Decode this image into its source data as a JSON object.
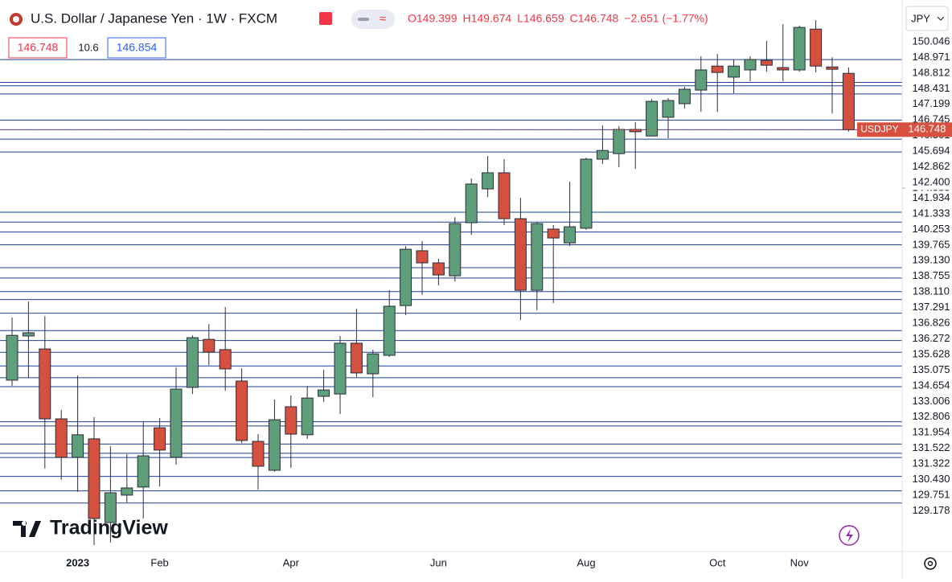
{
  "header": {
    "title": "U.S. Dollar / Japanese Yen · 1W · FXCM",
    "ohlc_labels": [
      "O149.399",
      "H149.674",
      "L146.659",
      "C146.748",
      "−2.651 (−1.77%)"
    ],
    "bid": "146.748",
    "spread": "10.6",
    "ask": "146.854",
    "currency": "JPY",
    "watermark": "TradingView"
  },
  "chart_data": {
    "type": "candlestick",
    "categories": [
      null,
      null,
      null,
      null,
      "2023",
      null,
      null,
      null,
      null,
      "Feb",
      null,
      null,
      null,
      null,
      null,
      null,
      null,
      "Apr",
      null,
      null,
      null,
      null,
      null,
      null,
      null,
      null,
      "Jun",
      null,
      null,
      null,
      null,
      null,
      null,
      null,
      null,
      "Aug",
      null,
      null,
      null,
      null,
      null,
      null,
      null,
      "Oct",
      null,
      null,
      null,
      null,
      "Nov",
      null,
      null,
      null
    ],
    "open": [
      134.96,
      137.04,
      136.43,
      133.14,
      131.33,
      132.2,
      128.26,
      129.55,
      129.93,
      132.72,
      131.33,
      134.62,
      136.88,
      136.4,
      134.92,
      132.08,
      130.72,
      133.71,
      132.39,
      134.2,
      134.31,
      136.7,
      135.26,
      136.13,
      138.47,
      141.05,
      140.48,
      139.87,
      142.37,
      143.96,
      144.72,
      142.56,
      139.19,
      142.07,
      141.42,
      142.11,
      145.36,
      145.62,
      146.76,
      146.45,
      147.33,
      147.97,
      148.61,
      149.74,
      149.22,
      149.56,
      150.01,
      149.67,
      149.56,
      151.48,
      149.7,
      149.399
    ],
    "high": [
      137.91,
      138.66,
      137.98,
      133.56,
      135.18,
      133.22,
      131.85,
      131.48,
      132.99,
      133.18,
      135.56,
      137.07,
      137.6,
      138.4,
      135.52,
      132.42,
      134.05,
      134.24,
      134.69,
      135.45,
      137.04,
      138.32,
      136.39,
      139.19,
      141.27,
      141.5,
      140.67,
      142.63,
      144.45,
      145.51,
      145.36,
      143.54,
      142.41,
      142.26,
      144.3,
      145.43,
      146.95,
      146.91,
      147.1,
      148.19,
      148.23,
      148.76,
      150.2,
      150.31,
      150.05,
      150.2,
      150.92,
      151.71,
      151.64,
      151.9,
      150.16,
      149.674
    ],
    "low": [
      134.69,
      135.07,
      130.8,
      130.27,
      129.7,
      127.2,
      127.32,
      129.21,
      128.45,
      129.96,
      130.98,
      134.31,
      135.67,
      134.46,
      132.0,
      129.81,
      130.65,
      130.83,
      132.2,
      133.94,
      133.37,
      135.11,
      134.16,
      136.05,
      138.02,
      138.97,
      139.42,
      139.61,
      141.8,
      143.58,
      142.26,
      137.79,
      138.25,
      138.59,
      141.27,
      142.03,
      145.13,
      144.98,
      144.9,
      146.45,
      146.34,
      147.74,
      147.59,
      147.59,
      148.46,
      149.03,
      149.48,
      149.03,
      149.48,
      149.44,
      147.51,
      146.659
    ],
    "close": [
      137.07,
      137.19,
      133.14,
      131.33,
      132.39,
      128.45,
      129.66,
      129.89,
      131.4,
      131.67,
      134.54,
      136.96,
      136.28,
      135.49,
      132.12,
      130.91,
      133.1,
      132.42,
      134.12,
      134.5,
      136.7,
      135.3,
      136.2,
      138.44,
      141.12,
      140.48,
      139.91,
      142.33,
      144.19,
      144.72,
      142.56,
      139.19,
      142.33,
      141.65,
      142.18,
      145.36,
      145.77,
      146.76,
      146.65,
      148.08,
      148.12,
      148.65,
      149.56,
      149.44,
      149.74,
      150.05,
      149.78,
      149.56,
      151.56,
      149.74,
      149.59,
      146.748
    ],
    "up_color": "#5f9e7b",
    "down_color": "#d5503f",
    "ylim": [
      126.9,
      152.85
    ],
    "yticks": [
      {
        "value": 144,
        "label": "144.000"
      }
    ],
    "levels": [
      {
        "value": 150.046,
        "label": "150.046"
      },
      148.971,
      148.812,
      148.431,
      147.199,
      146.745,
      146.301,
      145.694,
      142.862,
      {
        "value": 142.4,
        "label": "142.400"
      },
      141.934,
      141.333,
      140.253,
      139.765,
      {
        "value": 139.13,
        "label": "139.130"
      },
      138.755,
      {
        "value": 138.11,
        "label": "138.110"
      },
      137.291,
      136.826,
      136.272,
      135.628,
      135.075,
      134.654,
      133.006,
      132.806,
      131.954,
      131.522,
      131.322,
      {
        "value": 130.43,
        "label": "130.430"
      },
      129.751,
      129.178
    ],
    "level_color": "#1f3f9a",
    "last_price": 146.748,
    "last_price_tag": "USDJPY"
  }
}
